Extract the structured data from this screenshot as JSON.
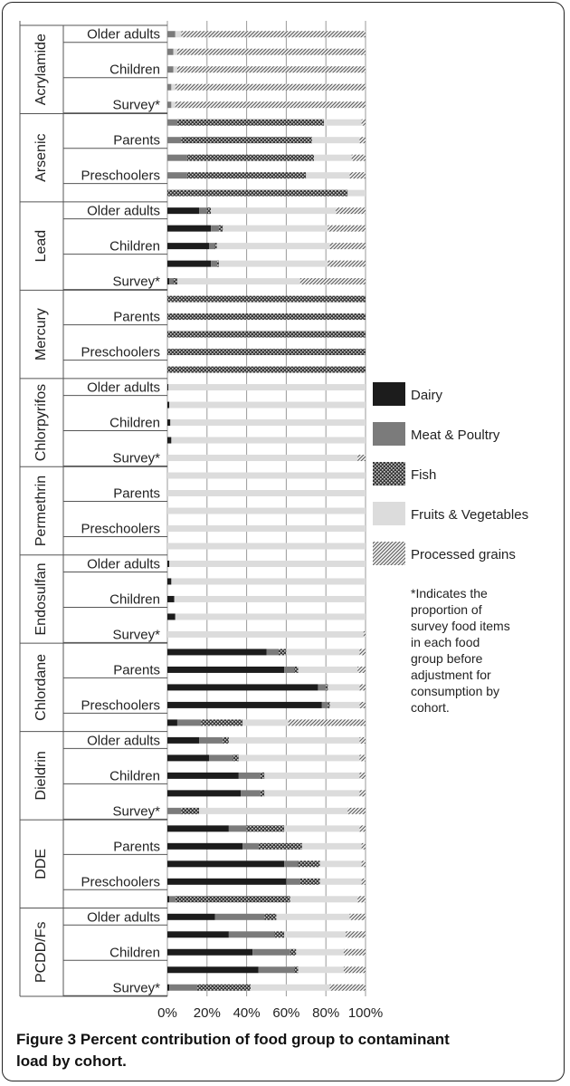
{
  "figure": {
    "label": "Figure 3",
    "caption": "Percent contribution of food group to contaminant load by cohort."
  },
  "colors": {
    "dairy": "#1c1c1c",
    "meat": "#7b7b7b",
    "fish": "#3a3a3a",
    "fruits": "#dcdcdc",
    "processed": "#9a9a9a"
  },
  "chart_data": {
    "type": "bar",
    "orientation": "horizontal",
    "stacked": true,
    "xlim": [
      0,
      100
    ],
    "x_ticks": [
      "0%",
      "20%",
      "40%",
      "60%",
      "80%",
      "100%"
    ],
    "grid": true,
    "legend_position": "right",
    "legend": [
      "Dairy",
      "Meat & Poultry",
      "Fish",
      "Fruits & Vegetables",
      "Processed grains"
    ],
    "footnote": "*Indicates the proportion of survey food items in each food group before adjustment for consumption by cohort.",
    "groups": [
      {
        "name": "Acrylamide",
        "rows": [
          {
            "label": "Older adults",
            "values": [
              0,
              4,
              0,
              3,
              93
            ]
          },
          {
            "label": "",
            "values": [
              0,
              3,
              0,
              2,
              95
            ]
          },
          {
            "label": "Children",
            "values": [
              0,
              3,
              0,
              2,
              95
            ]
          },
          {
            "label": "",
            "values": [
              0,
              2,
              0,
              2,
              96
            ]
          },
          {
            "label": "Survey*",
            "values": [
              0,
              2,
              0,
              2,
              96
            ]
          }
        ]
      },
      {
        "name": "Arsenic",
        "rows": [
          {
            "label": "",
            "values": [
              0,
              5,
              74,
              19,
              2
            ]
          },
          {
            "label": "Parents",
            "values": [
              0,
              7,
              66,
              24,
              3
            ]
          },
          {
            "label": "",
            "values": [
              0,
              10,
              64,
              19,
              7
            ]
          },
          {
            "label": "Preschoolers",
            "values": [
              0,
              10,
              60,
              22,
              8
            ]
          },
          {
            "label": "",
            "values": [
              0,
              0,
              91,
              9,
              0
            ]
          }
        ]
      },
      {
        "name": "Lead",
        "rows": [
          {
            "label": "Older adults",
            "values": [
              16,
              4,
              2,
              63,
              15
            ]
          },
          {
            "label": "",
            "values": [
              22,
              4,
              2,
              53,
              19
            ]
          },
          {
            "label": "Children",
            "values": [
              21,
              3,
              1,
              57,
              18
            ]
          },
          {
            "label": "",
            "values": [
              22,
              3,
              1,
              55,
              19
            ]
          },
          {
            "label": "Survey*",
            "values": [
              1,
              2,
              2,
              62,
              33
            ]
          }
        ]
      },
      {
        "name": "Mercury",
        "rows": [
          {
            "label": "",
            "values": [
              0,
              0,
              100,
              0,
              0
            ]
          },
          {
            "label": "Parents",
            "values": [
              0,
              0,
              100,
              0,
              0
            ]
          },
          {
            "label": "",
            "values": [
              0,
              0,
              100,
              0,
              0
            ]
          },
          {
            "label": "Preschoolers",
            "values": [
              0,
              0,
              100,
              0,
              0
            ]
          },
          {
            "label": "",
            "values": [
              0,
              0,
              100,
              0,
              0
            ]
          }
        ]
      },
      {
        "name": "Chlorpyrifos",
        "rows": [
          {
            "label": "Older adults",
            "values": [
              0.5,
              0,
              0,
              99.5,
              0
            ]
          },
          {
            "label": "",
            "values": [
              1,
              0,
              0,
              99,
              0
            ]
          },
          {
            "label": "Children",
            "values": [
              1.5,
              0,
              0,
              98.5,
              0
            ]
          },
          {
            "label": "",
            "values": [
              2,
              0,
              0,
              98,
              0
            ]
          },
          {
            "label": "Survey*",
            "values": [
              0,
              0,
              0,
              96,
              4
            ]
          }
        ]
      },
      {
        "name": "Permethrin",
        "rows": [
          {
            "label": "",
            "values": [
              0,
              0,
              0,
              100,
              0
            ]
          },
          {
            "label": "Parents",
            "values": [
              0,
              0,
              0,
              100,
              0
            ]
          },
          {
            "label": "",
            "values": [
              0,
              0,
              0,
              100,
              0
            ]
          },
          {
            "label": "Preschoolers",
            "values": [
              0,
              0,
              0,
              100,
              0
            ]
          },
          {
            "label": "",
            "values": [
              0,
              0,
              0,
              100,
              0
            ]
          }
        ]
      },
      {
        "name": "Endosulfan",
        "rows": [
          {
            "label": "Older adults",
            "values": [
              1,
              0,
              0,
              99,
              0
            ]
          },
          {
            "label": "",
            "values": [
              2,
              0,
              0,
              98,
              0
            ]
          },
          {
            "label": "Children",
            "values": [
              3.5,
              0,
              0,
              96.5,
              0
            ]
          },
          {
            "label": "",
            "values": [
              4,
              0,
              0,
              96,
              0
            ]
          },
          {
            "label": "Survey*",
            "values": [
              0,
              0,
              0,
              99,
              1
            ]
          }
        ]
      },
      {
        "name": "Chlordane",
        "rows": [
          {
            "label": "",
            "values": [
              50,
              6,
              4,
              37,
              3
            ]
          },
          {
            "label": "Parents",
            "values": [
              59,
              5,
              2,
              30,
              4
            ]
          },
          {
            "label": "",
            "values": [
              76,
              4,
              1,
              16,
              3
            ]
          },
          {
            "label": "Preschoolers",
            "values": [
              78,
              3,
              1,
              15,
              3
            ]
          },
          {
            "label": "",
            "values": [
              5,
              12,
              21,
              23,
              39
            ]
          }
        ]
      },
      {
        "name": "Dieldrin",
        "rows": [
          {
            "label": "Older adults",
            "values": [
              16,
              12,
              3,
              66,
              3
            ]
          },
          {
            "label": "",
            "values": [
              21,
              12,
              3,
              61,
              3
            ]
          },
          {
            "label": "Children",
            "values": [
              36,
              11,
              2,
              48,
              3
            ]
          },
          {
            "label": "",
            "values": [
              37,
              10,
              2,
              48,
              3
            ]
          },
          {
            "label": "Survey*",
            "values": [
              0,
              7,
              9,
              75,
              9
            ]
          }
        ]
      },
      {
        "name": "DDE",
        "rows": [
          {
            "label": "",
            "values": [
              31,
              9,
              19,
              38,
              3
            ]
          },
          {
            "label": "Parents",
            "values": [
              38,
              8,
              22,
              30,
              2
            ]
          },
          {
            "label": "",
            "values": [
              59,
              7,
              11,
              21,
              2
            ]
          },
          {
            "label": "Preschoolers",
            "values": [
              60,
              7,
              10,
              21,
              2
            ]
          },
          {
            "label": "",
            "values": [
              1,
              3,
              58,
              34,
              4
            ]
          }
        ]
      },
      {
        "name": "PCDD/Fs",
        "rows": [
          {
            "label": "Older adults",
            "values": [
              24,
              25,
              6,
              37,
              8
            ]
          },
          {
            "label": "",
            "values": [
              31,
              23,
              5,
              31,
              10
            ]
          },
          {
            "label": "Children",
            "values": [
              43,
              19,
              3,
              24,
              11
            ]
          },
          {
            "label": "",
            "values": [
              46,
              18,
              2,
              23,
              11
            ]
          },
          {
            "label": "Survey*",
            "values": [
              1,
              14,
              27,
              40,
              18
            ]
          }
        ]
      }
    ]
  }
}
